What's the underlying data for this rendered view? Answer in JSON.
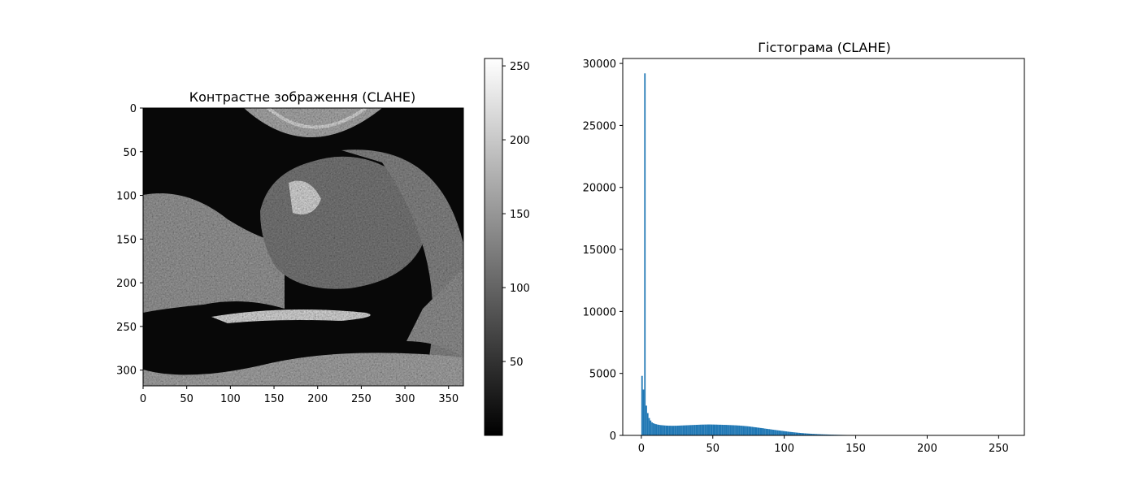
{
  "figure": {
    "left_title": "Контрастне зображення (CLAHE)",
    "right_title": "Гістограма (CLAHE)"
  },
  "chart_data": [
    {
      "type": "heatmap",
      "title": "Контрастне зображення (CLAHE)",
      "description_visible": "grayscale ultrasound image",
      "xlim": [
        0,
        367
      ],
      "ylim": [
        318,
        0
      ],
      "x_ticks": [
        0,
        50,
        100,
        150,
        200,
        250,
        300,
        350
      ],
      "y_ticks": [
        0,
        50,
        100,
        150,
        200,
        250,
        300
      ],
      "colorbar": {
        "range": [
          0,
          255
        ],
        "ticks": [
          50,
          100,
          150,
          200,
          250
        ],
        "colormap": "gray"
      }
    },
    {
      "type": "bar",
      "title": "Гістограма (CLAHE)",
      "color": "#1f77b4",
      "xlim": [
        -13,
        268
      ],
      "ylim": [
        0,
        30400
      ],
      "x_ticks": [
        0,
        50,
        100,
        150,
        200,
        250
      ],
      "y_ticks": [
        0,
        5000,
        10000,
        15000,
        20000,
        25000,
        30000
      ],
      "bins": [
        [
          0,
          4800
        ],
        [
          1,
          3700
        ],
        [
          2,
          29200
        ],
        [
          3,
          2400
        ],
        [
          4,
          1800
        ],
        [
          5,
          1400
        ],
        [
          6,
          1200
        ],
        [
          7,
          1050
        ],
        [
          8,
          980
        ],
        [
          9,
          930
        ],
        [
          10,
          900
        ],
        [
          11,
          870
        ],
        [
          12,
          850
        ],
        [
          13,
          830
        ],
        [
          14,
          820
        ],
        [
          15,
          810
        ],
        [
          16,
          800
        ],
        [
          17,
          790
        ],
        [
          18,
          785
        ],
        [
          19,
          780
        ],
        [
          20,
          780
        ],
        [
          21,
          775
        ],
        [
          22,
          775
        ],
        [
          23,
          780
        ],
        [
          24,
          780
        ],
        [
          25,
          785
        ],
        [
          26,
          790
        ],
        [
          27,
          795
        ],
        [
          28,
          800
        ],
        [
          29,
          805
        ],
        [
          30,
          810
        ],
        [
          31,
          815
        ],
        [
          32,
          820
        ],
        [
          33,
          825
        ],
        [
          34,
          830
        ],
        [
          35,
          835
        ],
        [
          36,
          840
        ],
        [
          37,
          845
        ],
        [
          38,
          850
        ],
        [
          39,
          855
        ],
        [
          40,
          860
        ],
        [
          41,
          865
        ],
        [
          42,
          870
        ],
        [
          43,
          870
        ],
        [
          44,
          875
        ],
        [
          45,
          875
        ],
        [
          46,
          880
        ],
        [
          47,
          880
        ],
        [
          48,
          880
        ],
        [
          49,
          875
        ],
        [
          50,
          875
        ],
        [
          51,
          870
        ],
        [
          52,
          870
        ],
        [
          53,
          865
        ],
        [
          54,
          860
        ],
        [
          55,
          860
        ],
        [
          56,
          855
        ],
        [
          57,
          850
        ],
        [
          58,
          850
        ],
        [
          59,
          845
        ],
        [
          60,
          840
        ],
        [
          61,
          835
        ],
        [
          62,
          830
        ],
        [
          63,
          825
        ],
        [
          64,
          820
        ],
        [
          65,
          815
        ],
        [
          66,
          810
        ],
        [
          67,
          800
        ],
        [
          68,
          795
        ],
        [
          69,
          785
        ],
        [
          70,
          775
        ],
        [
          71,
          765
        ],
        [
          72,
          755
        ],
        [
          73,
          745
        ],
        [
          74,
          735
        ],
        [
          75,
          720
        ],
        [
          76,
          705
        ],
        [
          77,
          690
        ],
        [
          78,
          675
        ],
        [
          79,
          660
        ],
        [
          80,
          645
        ],
        [
          81,
          630
        ],
        [
          82,
          615
        ],
        [
          83,
          600
        ],
        [
          84,
          585
        ],
        [
          85,
          570
        ],
        [
          86,
          550
        ],
        [
          87,
          535
        ],
        [
          88,
          520
        ],
        [
          89,
          505
        ],
        [
          90,
          490
        ],
        [
          91,
          470
        ],
        [
          92,
          455
        ],
        [
          93,
          440
        ],
        [
          94,
          425
        ],
        [
          95,
          410
        ],
        [
          96,
          395
        ],
        [
          97,
          380
        ],
        [
          98,
          365
        ],
        [
          99,
          350
        ],
        [
          100,
          335
        ],
        [
          101,
          320
        ],
        [
          102,
          305
        ],
        [
          103,
          290
        ],
        [
          104,
          278
        ],
        [
          105,
          265
        ],
        [
          106,
          252
        ],
        [
          107,
          240
        ],
        [
          108,
          228
        ],
        [
          109,
          216
        ],
        [
          110,
          205
        ],
        [
          111,
          195
        ],
        [
          112,
          185
        ],
        [
          113,
          175
        ],
        [
          114,
          166
        ],
        [
          115,
          158
        ],
        [
          116,
          150
        ],
        [
          117,
          142
        ],
        [
          118,
          135
        ],
        [
          119,
          128
        ],
        [
          120,
          121
        ],
        [
          121,
          115
        ],
        [
          122,
          109
        ],
        [
          123,
          103
        ],
        [
          124,
          98
        ],
        [
          125,
          93
        ],
        [
          126,
          88
        ],
        [
          127,
          83
        ],
        [
          128,
          79
        ],
        [
          129,
          75
        ],
        [
          130,
          71
        ],
        [
          131,
          67
        ],
        [
          132,
          63
        ],
        [
          133,
          60
        ],
        [
          134,
          57
        ],
        [
          135,
          54
        ],
        [
          136,
          51
        ],
        [
          137,
          48
        ],
        [
          138,
          45
        ],
        [
          139,
          43
        ],
        [
          140,
          40
        ],
        [
          141,
          38
        ],
        [
          142,
          36
        ],
        [
          143,
          34
        ],
        [
          144,
          32
        ],
        [
          145,
          30
        ],
        [
          146,
          28
        ],
        [
          147,
          27
        ],
        [
          148,
          25
        ],
        [
          149,
          24
        ],
        [
          150,
          22
        ],
        [
          151,
          21
        ],
        [
          152,
          20
        ],
        [
          153,
          18
        ],
        [
          154,
          17
        ],
        [
          155,
          16
        ],
        [
          156,
          15
        ],
        [
          157,
          14
        ],
        [
          158,
          13
        ],
        [
          159,
          12
        ],
        [
          160,
          11
        ],
        [
          161,
          10
        ],
        [
          162,
          10
        ],
        [
          163,
          9
        ],
        [
          164,
          9
        ],
        [
          165,
          8
        ],
        [
          166,
          8
        ],
        [
          167,
          7
        ],
        [
          168,
          7
        ],
        [
          169,
          6
        ],
        [
          170,
          6
        ],
        [
          171,
          6
        ],
        [
          172,
          5
        ],
        [
          173,
          5
        ],
        [
          174,
          5
        ],
        [
          175,
          4
        ],
        [
          176,
          4
        ],
        [
          177,
          4
        ],
        [
          178,
          4
        ],
        [
          179,
          3
        ],
        [
          180,
          3
        ],
        [
          181,
          3
        ],
        [
          182,
          3
        ],
        [
          183,
          3
        ],
        [
          184,
          2
        ],
        [
          185,
          2
        ],
        [
          186,
          2
        ],
        [
          187,
          2
        ],
        [
          188,
          2
        ],
        [
          189,
          2
        ],
        [
          190,
          2
        ],
        [
          191,
          2
        ],
        [
          192,
          2
        ],
        [
          193,
          1
        ],
        [
          194,
          1
        ],
        [
          195,
          1
        ],
        [
          196,
          1
        ],
        [
          197,
          1
        ],
        [
          198,
          1
        ],
        [
          199,
          1
        ],
        [
          200,
          1
        ],
        [
          201,
          1
        ],
        [
          202,
          1
        ],
        [
          203,
          1
        ],
        [
          204,
          1
        ],
        [
          205,
          1
        ],
        [
          206,
          1
        ],
        [
          207,
          1
        ],
        [
          208,
          1
        ],
        [
          209,
          1
        ],
        [
          210,
          1
        ],
        [
          211,
          1
        ],
        [
          212,
          1
        ],
        [
          213,
          1
        ],
        [
          214,
          1
        ],
        [
          215,
          1
        ],
        [
          216,
          1
        ],
        [
          217,
          1
        ],
        [
          218,
          1
        ],
        [
          219,
          1
        ],
        [
          220,
          1
        ],
        [
          221,
          1
        ],
        [
          222,
          1
        ],
        [
          223,
          1
        ],
        [
          224,
          1
        ],
        [
          225,
          1
        ],
        [
          226,
          1
        ],
        [
          227,
          1
        ],
        [
          228,
          1
        ],
        [
          229,
          1
        ],
        [
          230,
          1
        ],
        [
          231,
          1
        ],
        [
          232,
          1
        ],
        [
          233,
          1
        ],
        [
          234,
          1
        ],
        [
          235,
          1
        ],
        [
          236,
          1
        ],
        [
          237,
          1
        ],
        [
          238,
          1
        ],
        [
          239,
          1
        ],
        [
          240,
          1
        ],
        [
          241,
          1
        ],
        [
          242,
          1
        ],
        [
          243,
          1
        ],
        [
          244,
          1
        ],
        [
          245,
          1
        ],
        [
          246,
          1
        ],
        [
          247,
          1
        ],
        [
          248,
          1
        ],
        [
          249,
          1
        ],
        [
          250,
          1
        ],
        [
          251,
          1
        ],
        [
          252,
          1
        ],
        [
          253,
          1
        ],
        [
          254,
          1
        ],
        [
          255,
          1
        ]
      ]
    }
  ]
}
